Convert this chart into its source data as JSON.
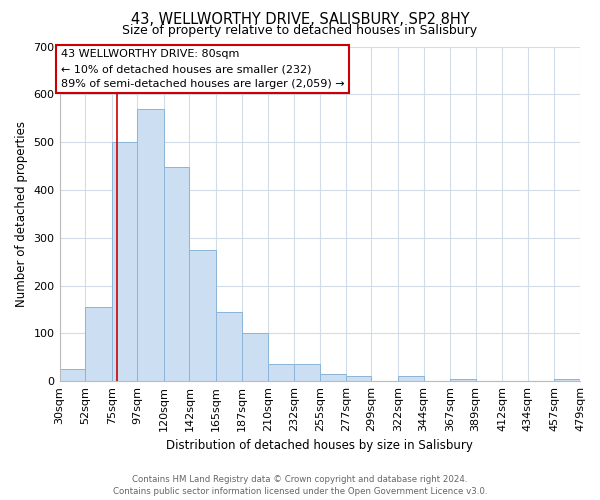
{
  "title1": "43, WELLWORTHY DRIVE, SALISBURY, SP2 8HY",
  "title2": "Size of property relative to detached houses in Salisbury",
  "xlabel": "Distribution of detached houses by size in Salisbury",
  "ylabel": "Number of detached properties",
  "bar_edges": [
    30,
    52,
    75,
    97,
    120,
    142,
    165,
    187,
    210,
    232,
    255,
    277,
    299,
    322,
    344,
    367,
    389,
    412,
    434,
    457,
    479
  ],
  "bar_heights": [
    25,
    155,
    500,
    570,
    448,
    275,
    145,
    100,
    35,
    35,
    15,
    10,
    0,
    10,
    0,
    5,
    0,
    0,
    0,
    5
  ],
  "bar_color": "#ccdff2",
  "bar_edgecolor": "#8ab4d8",
  "tick_labels": [
    "30sqm",
    "52sqm",
    "75sqm",
    "97sqm",
    "120sqm",
    "142sqm",
    "165sqm",
    "187sqm",
    "210sqm",
    "232sqm",
    "255sqm",
    "277sqm",
    "299sqm",
    "322sqm",
    "344sqm",
    "367sqm",
    "389sqm",
    "412sqm",
    "434sqm",
    "457sqm",
    "479sqm"
  ],
  "vline_x": 80,
  "vline_color": "#cc0000",
  "ylim": [
    0,
    700
  ],
  "yticks": [
    0,
    100,
    200,
    300,
    400,
    500,
    600,
    700
  ],
  "annotation_title": "43 WELLWORTHY DRIVE: 80sqm",
  "annotation_line1": "← 10% of detached houses are smaller (232)",
  "annotation_line2": "89% of semi-detached houses are larger (2,059) →",
  "footer1": "Contains HM Land Registry data © Crown copyright and database right 2024.",
  "footer2": "Contains public sector information licensed under the Open Government Licence v3.0.",
  "background_color": "#ffffff",
  "grid_color": "#d0dce8"
}
